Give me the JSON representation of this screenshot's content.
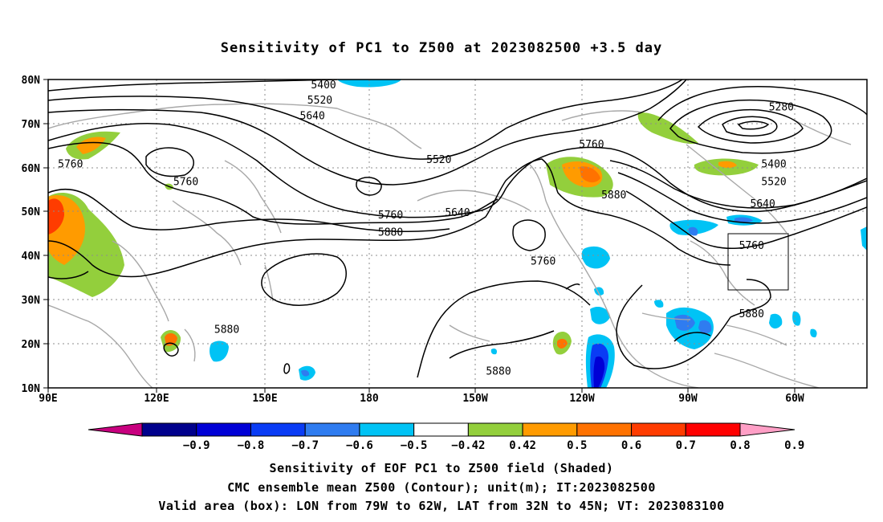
{
  "title": "Sensitivity of PC1 to Z500 at 2023082500 +3.5 day",
  "map": {
    "lon_labels": [
      "90E",
      "120E",
      "150E",
      "180",
      "150W",
      "120W",
      "90W",
      "60W"
    ],
    "lat_labels": [
      "80N",
      "70N",
      "60N",
      "50N",
      "40N",
      "30N",
      "20N",
      "10N"
    ],
    "contour_labels": [
      {
        "text": "5400",
        "lon": 164,
        "lat": 78
      },
      {
        "text": "5520",
        "lon": 163,
        "lat": 74.5
      },
      {
        "text": "5640",
        "lon": 161,
        "lat": 71
      },
      {
        "text": "5760",
        "lon": 96,
        "lat": 60
      },
      {
        "text": "5760",
        "lon": 127,
        "lat": 56
      },
      {
        "text": "5520",
        "lon": -165,
        "lat": 61
      },
      {
        "text": "5760",
        "lon": -124,
        "lat": 64.5
      },
      {
        "text": "5880",
        "lon": -118,
        "lat": 53
      },
      {
        "text": "5280",
        "lon": -73,
        "lat": 73
      },
      {
        "text": "5400",
        "lon": -75,
        "lat": 60
      },
      {
        "text": "5520",
        "lon": -75,
        "lat": 56
      },
      {
        "text": "5640",
        "lon": -78,
        "lat": 51
      },
      {
        "text": "5760",
        "lon": -81,
        "lat": 41.5
      },
      {
        "text": "5760",
        "lon": -178,
        "lat": 48.5
      },
      {
        "text": "5640",
        "lon": -160,
        "lat": 49
      },
      {
        "text": "5880",
        "lon": -178,
        "lat": 44.5
      },
      {
        "text": "5760",
        "lon": -137,
        "lat": 38
      },
      {
        "text": "5880",
        "lon": -81,
        "lat": 26
      },
      {
        "text": "5880",
        "lon": 138,
        "lat": 22.5
      },
      {
        "text": "5880",
        "lon": -149,
        "lat": 13
      }
    ],
    "valid_box": {
      "lon_west": -79,
      "lon_east": -62,
      "lat_south": 32,
      "lat_north": 45
    },
    "colors": {
      "coast": "#a8a8a8",
      "contour": "#000000",
      "grid": "#8c8c8c"
    }
  },
  "colorbar": {
    "labels": [
      "−0.9",
      "−0.8",
      "−0.7",
      "−0.6",
      "−0.5",
      "−0.42",
      "0.42",
      "0.5",
      "0.6",
      "0.7",
      "0.8",
      "0.9"
    ],
    "colors": [
      "#c8007f",
      "#00008c",
      "#0000d6",
      "#0a3cf5",
      "#2f7cf0",
      "#00c3f5",
      "#ffffff",
      "#93cf3c",
      "#ff9b00",
      "#ff7200",
      "#ff3c00",
      "#ff0000",
      "#ff9fc6"
    ]
  },
  "captions": [
    "Sensitivity of EOF PC1 to Z500 field (Shaded)",
    "CMC ensemble mean Z500 (Contour); unit(m); IT:2023082500",
    "Valid area (box): LON from 79W to 62W, LAT from 32N to 45N; VT: 2023083100"
  ]
}
